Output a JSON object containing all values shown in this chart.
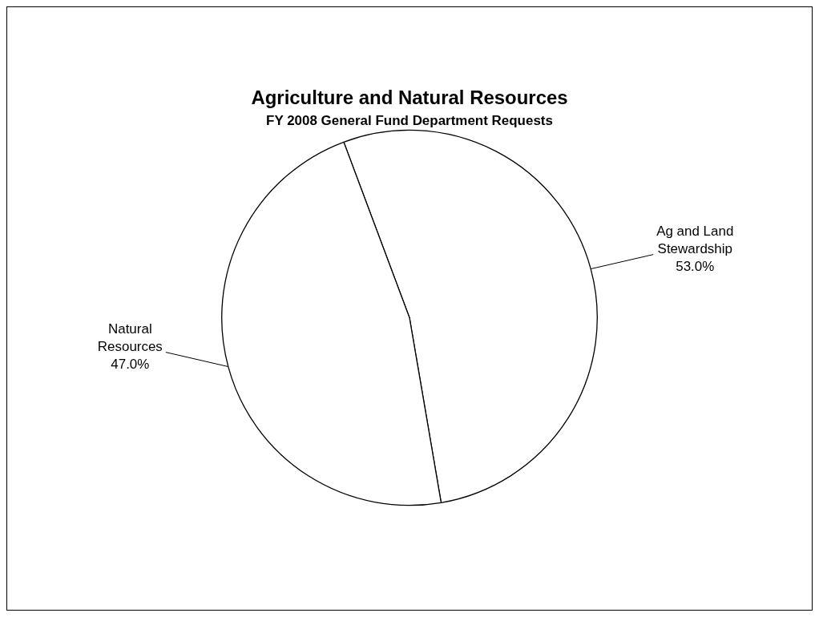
{
  "chart_data": {
    "type": "pie",
    "title": "Agriculture and Natural Resources",
    "subtitle": "FY 2008 General Fund Department Requests",
    "categories": [
      "Ag and Land Stewardship",
      "Natural Resources"
    ],
    "values": [
      53.0,
      47.0
    ],
    "colors": [
      "#ffffff",
      "#ffffff"
    ],
    "value_labels": [
      "53.0%",
      "47.0%"
    ],
    "legend": false
  }
}
